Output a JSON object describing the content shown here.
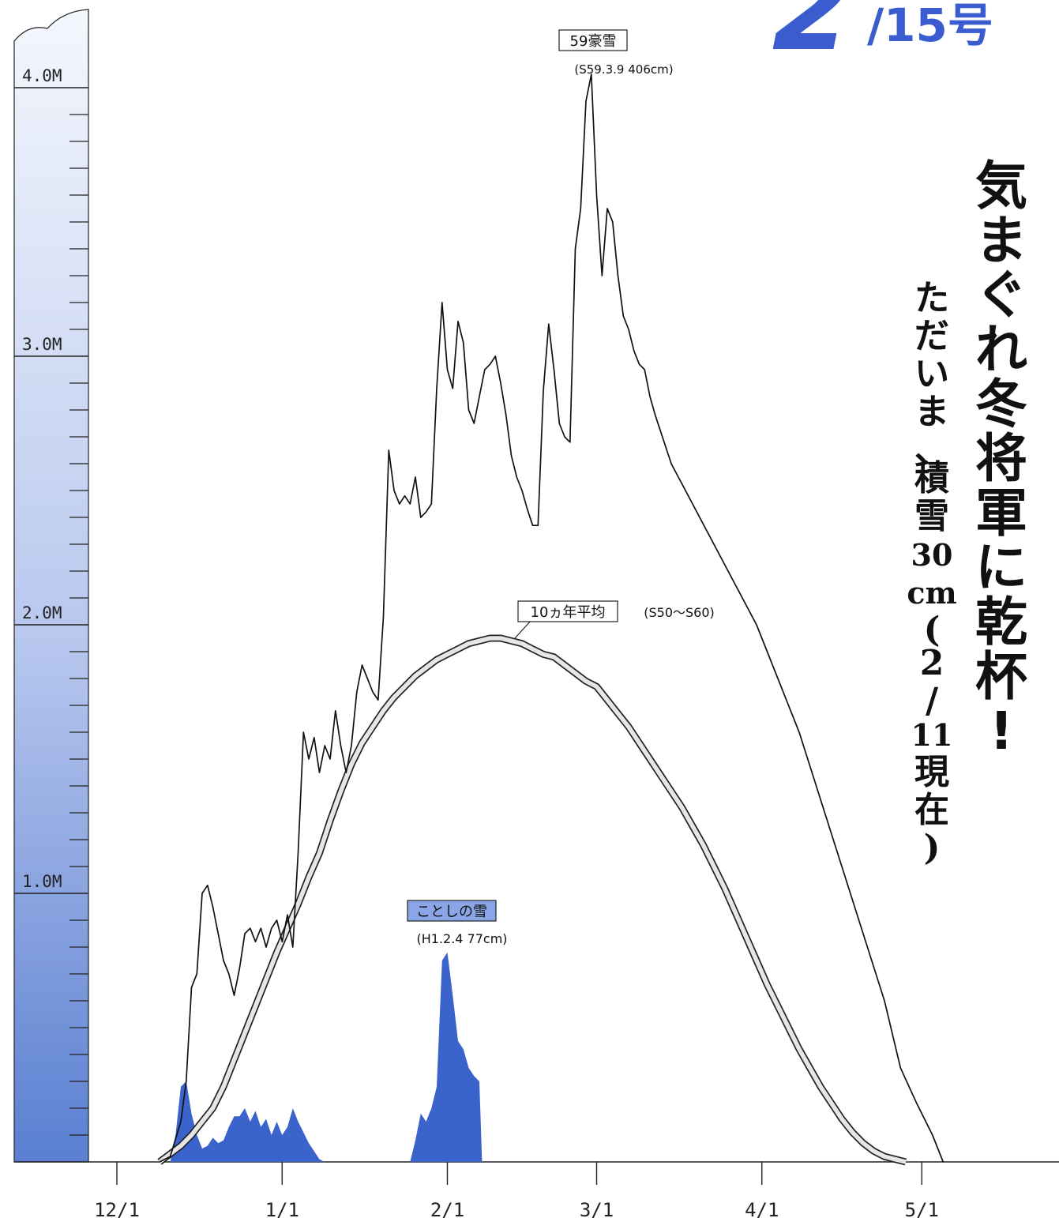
{
  "issue": {
    "number": "2",
    "suffix": "/15号"
  },
  "headline": {
    "main_chars": [
      "気",
      "ま",
      "ぐ",
      "れ",
      "冬",
      "将",
      "軍",
      "に",
      "乾",
      "杯",
      "!"
    ],
    "sub_chars": [
      "た",
      "だ",
      "い",
      "ま",
      "、",
      "積",
      "雪",
      "30",
      "cm",
      "(",
      "2",
      "/",
      "11",
      "現",
      "在",
      ")"
    ]
  },
  "colors": {
    "issue_blue": "#3a5ccf",
    "snow_fill": "#3b63cc",
    "scale_top": "#f4f7fd",
    "scale_bottom": "#5a7fd1",
    "avg_fill": "#e6e6e6",
    "line": "#111111"
  },
  "chart_data": {
    "type": "line",
    "unit_y": "M",
    "ylim": [
      0,
      4.0
    ],
    "y_ticks": [
      {
        "value": 4.0,
        "label": "4.0M"
      },
      {
        "value": 3.0,
        "label": "3.0M"
      },
      {
        "value": 2.0,
        "label": "2.0M"
      },
      {
        "value": 1.0,
        "label": "1.0M"
      }
    ],
    "x_ticks": [
      {
        "value": 0,
        "label": "12/1"
      },
      {
        "value": 31,
        "label": "1/1"
      },
      {
        "value": 62,
        "label": "2/1"
      },
      {
        "value": 90,
        "label": "3/1"
      },
      {
        "value": 121,
        "label": "4/1"
      },
      {
        "value": 151,
        "label": "5/1"
      }
    ],
    "xlim": [
      -4,
      168
    ],
    "series": [
      {
        "name": "59豪雪",
        "note": "(S59.3.9 406cm)",
        "points": [
          [
            8,
            0.0
          ],
          [
            10,
            0.02
          ],
          [
            12,
            0.15
          ],
          [
            13,
            0.3
          ],
          [
            14,
            0.65
          ],
          [
            15,
            0.7
          ],
          [
            16,
            1.0
          ],
          [
            17,
            1.03
          ],
          [
            18,
            0.95
          ],
          [
            19,
            0.85
          ],
          [
            20,
            0.75
          ],
          [
            21,
            0.7
          ],
          [
            22,
            0.62
          ],
          [
            23,
            0.72
          ],
          [
            24,
            0.85
          ],
          [
            25,
            0.87
          ],
          [
            26,
            0.82
          ],
          [
            27,
            0.87
          ],
          [
            28,
            0.8
          ],
          [
            29,
            0.87
          ],
          [
            30,
            0.9
          ],
          [
            31,
            0.82
          ],
          [
            32,
            0.92
          ],
          [
            33,
            0.8
          ],
          [
            34,
            1.15
          ],
          [
            35,
            1.6
          ],
          [
            36,
            1.5
          ],
          [
            37,
            1.58
          ],
          [
            38,
            1.45
          ],
          [
            39,
            1.55
          ],
          [
            40,
            1.5
          ],
          [
            41,
            1.68
          ],
          [
            42,
            1.55
          ],
          [
            43,
            1.45
          ],
          [
            44,
            1.55
          ],
          [
            45,
            1.75
          ],
          [
            46,
            1.85
          ],
          [
            47,
            1.8
          ],
          [
            48,
            1.75
          ],
          [
            49,
            1.72
          ],
          [
            50,
            2.03
          ],
          [
            51,
            2.65
          ],
          [
            52,
            2.5
          ],
          [
            53,
            2.45
          ],
          [
            54,
            2.48
          ],
          [
            55,
            2.45
          ],
          [
            56,
            2.55
          ],
          [
            57,
            2.4
          ],
          [
            58,
            2.42
          ],
          [
            59,
            2.45
          ],
          [
            60,
            2.88
          ],
          [
            61,
            3.2
          ],
          [
            62,
            2.95
          ],
          [
            63,
            2.88
          ],
          [
            64,
            3.13
          ],
          [
            65,
            3.05
          ],
          [
            66,
            2.8
          ],
          [
            67,
            2.75
          ],
          [
            68,
            2.85
          ],
          [
            69,
            2.95
          ],
          [
            70,
            2.97
          ],
          [
            71,
            3.0
          ],
          [
            72,
            2.9
          ],
          [
            73,
            2.78
          ],
          [
            74,
            2.63
          ],
          [
            75,
            2.55
          ],
          [
            76,
            2.5
          ],
          [
            77,
            2.43
          ],
          [
            78,
            2.37
          ],
          [
            79,
            2.37
          ],
          [
            80,
            2.87
          ],
          [
            81,
            3.12
          ],
          [
            82,
            2.95
          ],
          [
            83,
            2.75
          ],
          [
            84,
            2.7
          ],
          [
            85,
            2.68
          ],
          [
            86,
            3.4
          ],
          [
            87,
            3.55
          ],
          [
            88,
            3.95
          ],
          [
            89,
            4.05
          ],
          [
            90,
            3.6
          ],
          [
            91,
            3.3
          ],
          [
            92,
            3.55
          ],
          [
            93,
            3.5
          ],
          [
            94,
            3.3
          ],
          [
            95,
            3.15
          ],
          [
            96,
            3.1
          ],
          [
            97,
            3.02
          ],
          [
            98,
            2.97
          ],
          [
            99,
            2.95
          ],
          [
            100,
            2.85
          ],
          [
            101,
            2.78
          ],
          [
            104,
            2.6
          ],
          [
            108,
            2.45
          ],
          [
            112,
            2.3
          ],
          [
            116,
            2.15
          ],
          [
            120,
            2.0
          ],
          [
            124,
            1.8
          ],
          [
            128,
            1.6
          ],
          [
            132,
            1.35
          ],
          [
            136,
            1.1
          ],
          [
            140,
            0.85
          ],
          [
            144,
            0.6
          ],
          [
            147,
            0.35
          ],
          [
            150,
            0.22
          ],
          [
            153,
            0.1
          ],
          [
            155,
            0.0
          ]
        ]
      },
      {
        "name": "10ヵ年平均",
        "note": "(S50〜S60)",
        "points": [
          [
            8,
            0.0
          ],
          [
            10,
            0.03
          ],
          [
            12,
            0.06
          ],
          [
            14,
            0.1
          ],
          [
            16,
            0.15
          ],
          [
            18,
            0.2
          ],
          [
            20,
            0.28
          ],
          [
            22,
            0.38
          ],
          [
            24,
            0.48
          ],
          [
            26,
            0.58
          ],
          [
            28,
            0.68
          ],
          [
            30,
            0.78
          ],
          [
            32,
            0.87
          ],
          [
            34,
            0.96
          ],
          [
            36,
            1.06
          ],
          [
            38,
            1.15
          ],
          [
            40,
            1.27
          ],
          [
            42,
            1.38
          ],
          [
            44,
            1.48
          ],
          [
            46,
            1.56
          ],
          [
            48,
            1.62
          ],
          [
            50,
            1.68
          ],
          [
            52,
            1.73
          ],
          [
            54,
            1.77
          ],
          [
            56,
            1.81
          ],
          [
            58,
            1.84
          ],
          [
            60,
            1.87
          ],
          [
            62,
            1.89
          ],
          [
            64,
            1.91
          ],
          [
            66,
            1.93
          ],
          [
            68,
            1.94
          ],
          [
            70,
            1.95
          ],
          [
            72,
            1.95
          ],
          [
            74,
            1.94
          ],
          [
            76,
            1.93
          ],
          [
            78,
            1.91
          ],
          [
            80,
            1.89
          ],
          [
            82,
            1.88
          ],
          [
            84,
            1.85
          ],
          [
            86,
            1.82
          ],
          [
            88,
            1.79
          ],
          [
            90,
            1.77
          ],
          [
            92,
            1.72
          ],
          [
            94,
            1.67
          ],
          [
            96,
            1.62
          ],
          [
            98,
            1.56
          ],
          [
            100,
            1.5
          ],
          [
            102,
            1.44
          ],
          [
            104,
            1.38
          ],
          [
            106,
            1.32
          ],
          [
            108,
            1.25
          ],
          [
            110,
            1.18
          ],
          [
            112,
            1.1
          ],
          [
            114,
            1.02
          ],
          [
            116,
            0.93
          ],
          [
            118,
            0.84
          ],
          [
            120,
            0.75
          ],
          [
            122,
            0.66
          ],
          [
            124,
            0.58
          ],
          [
            126,
            0.5
          ],
          [
            128,
            0.42
          ],
          [
            130,
            0.35
          ],
          [
            132,
            0.28
          ],
          [
            134,
            0.22
          ],
          [
            136,
            0.16
          ],
          [
            138,
            0.11
          ],
          [
            140,
            0.07
          ],
          [
            142,
            0.04
          ],
          [
            144,
            0.02
          ],
          [
            146,
            0.01
          ],
          [
            148,
            0.0
          ]
        ]
      },
      {
        "name": "ことしの雪",
        "note": "(H1.2.4 77cm)",
        "points": [
          [
            10,
            0.0
          ],
          [
            11,
            0.1
          ],
          [
            12,
            0.28
          ],
          [
            13,
            0.3
          ],
          [
            14,
            0.18
          ],
          [
            15,
            0.1
          ],
          [
            16,
            0.05
          ],
          [
            17,
            0.06
          ],
          [
            18,
            0.09
          ],
          [
            19,
            0.07
          ],
          [
            20,
            0.08
          ],
          [
            21,
            0.13
          ],
          [
            22,
            0.17
          ],
          [
            23,
            0.17
          ],
          [
            24,
            0.2
          ],
          [
            25,
            0.15
          ],
          [
            26,
            0.19
          ],
          [
            27,
            0.13
          ],
          [
            28,
            0.16
          ],
          [
            29,
            0.1
          ],
          [
            30,
            0.15
          ],
          [
            31,
            0.1
          ],
          [
            32,
            0.13
          ],
          [
            33,
            0.2
          ],
          [
            34,
            0.15
          ],
          [
            35,
            0.11
          ],
          [
            36,
            0.07
          ],
          [
            37,
            0.04
          ],
          [
            38,
            0.01
          ],
          [
            39,
            0.0
          ],
          [
            40,
            0.0
          ],
          [
            55,
            0.0
          ],
          [
            56,
            0.08
          ],
          [
            57,
            0.18
          ],
          [
            58,
            0.15
          ],
          [
            59,
            0.2
          ],
          [
            60,
            0.28
          ],
          [
            61,
            0.75
          ],
          [
            62,
            0.78
          ],
          [
            63,
            0.62
          ],
          [
            64,
            0.45
          ],
          [
            65,
            0.42
          ],
          [
            66,
            0.35
          ],
          [
            67,
            0.32
          ],
          [
            68,
            0.3
          ],
          [
            68.5,
            0.0
          ]
        ]
      }
    ]
  }
}
